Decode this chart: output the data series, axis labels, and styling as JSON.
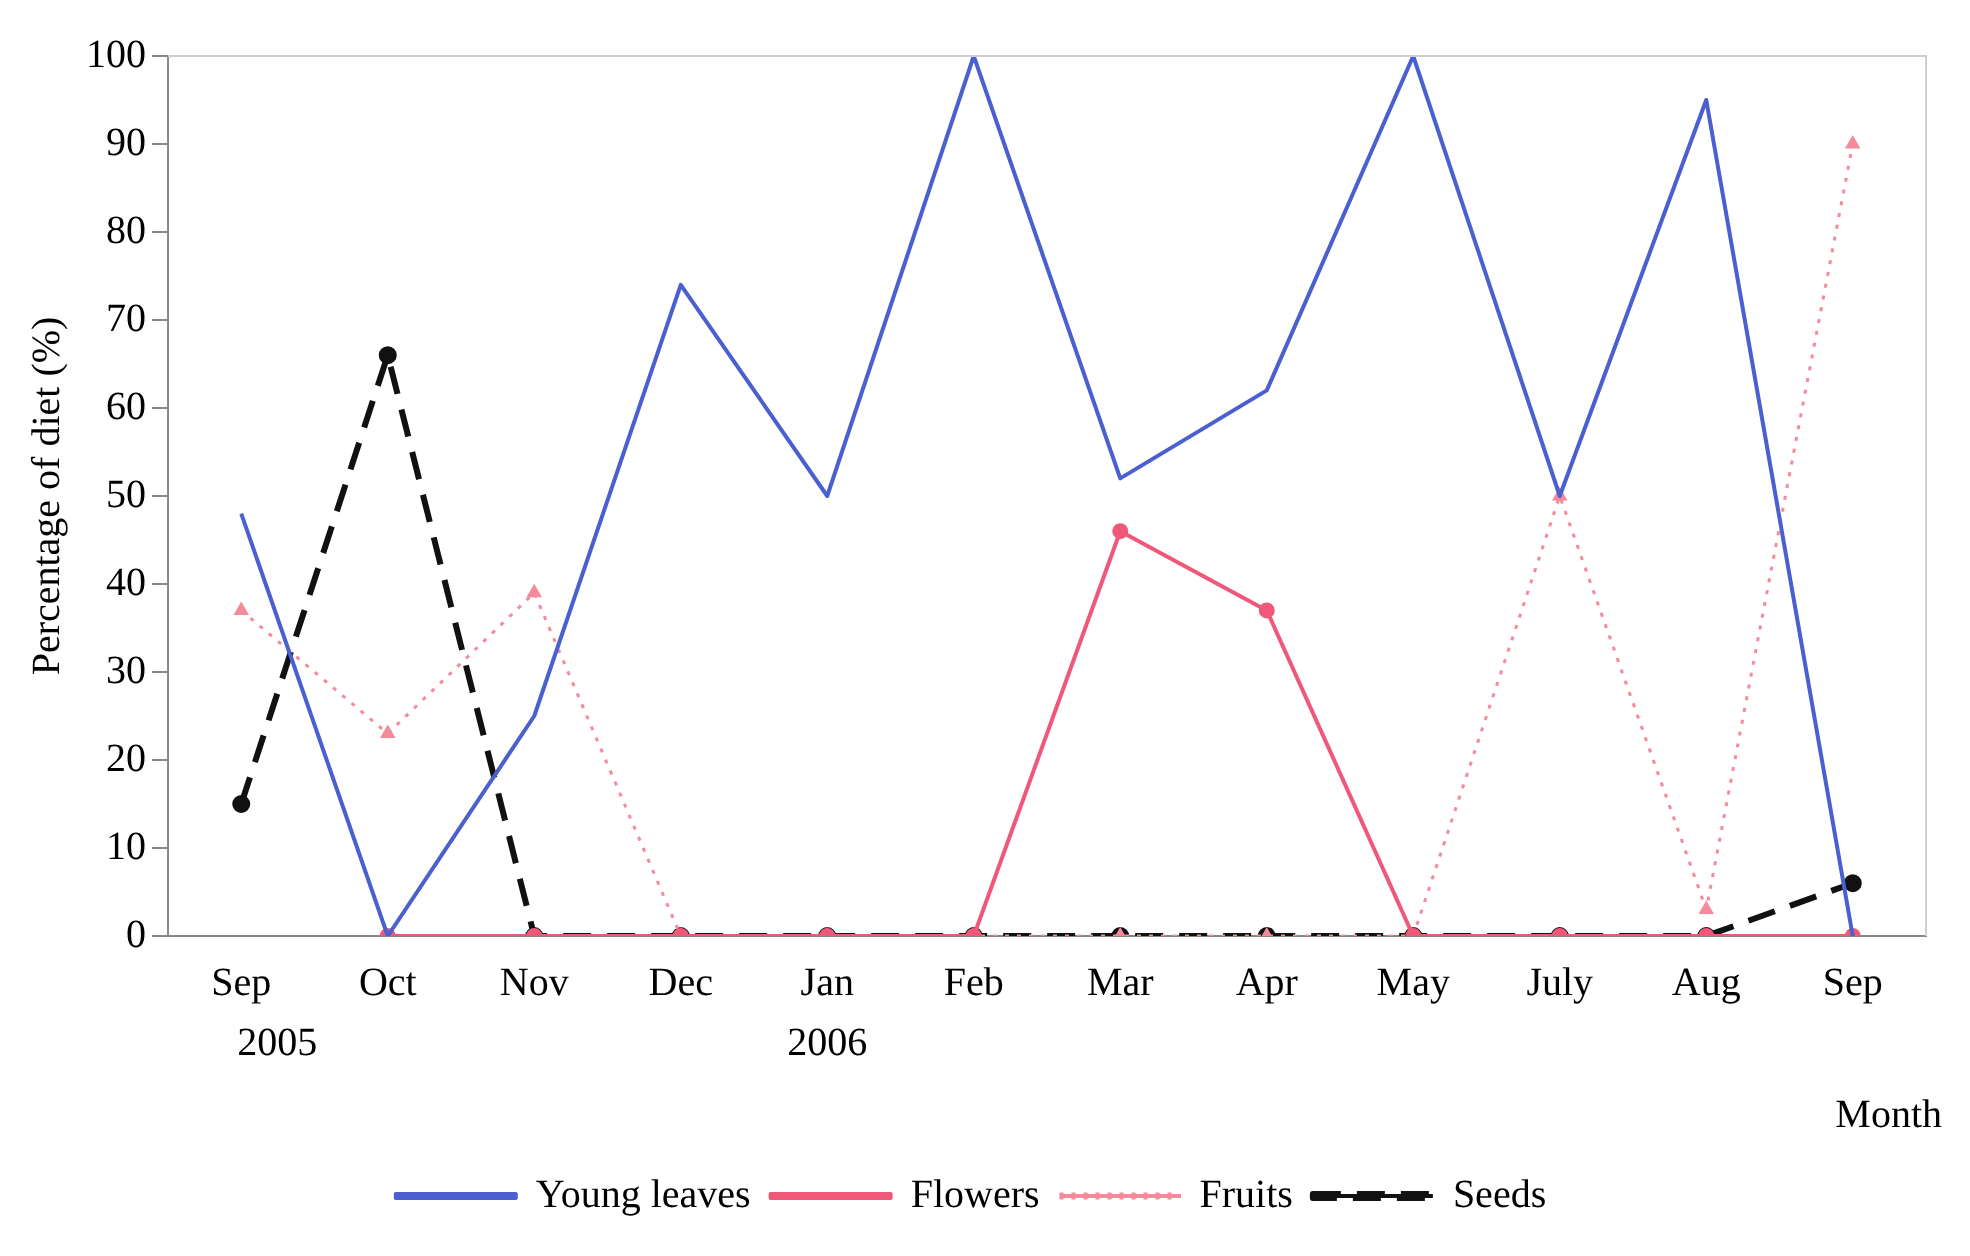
{
  "chart_data": {
    "type": "line",
    "xlabel": "Month",
    "ylabel": "Percentage of diet (%)",
    "categories": [
      "Sep",
      "Oct",
      "Nov",
      "Dec",
      "Jan",
      "Feb",
      "Mar",
      "Apr",
      "May",
      "July",
      "Aug",
      "Sep"
    ],
    "series": [
      {
        "name": "Young leaves",
        "color": "#4a5fd0",
        "marker": "none",
        "line_style": "solid",
        "values": [
          48,
          0,
          25,
          74,
          50,
          100,
          52,
          62,
          100,
          50,
          95,
          0
        ]
      },
      {
        "name": "Flowers",
        "color": "#f0587a",
        "marker": "circle",
        "line_style": "solid",
        "values": [
          null,
          0,
          0,
          0,
          0,
          0,
          46,
          37,
          0,
          0,
          0,
          0
        ]
      },
      {
        "name": "Fruits",
        "color": "#f48a9a",
        "marker": "triangle",
        "line_style": "dotted",
        "values": [
          37,
          23,
          39,
          0,
          0,
          0,
          0,
          0,
          0,
          50,
          3,
          90
        ]
      },
      {
        "name": "Seeds",
        "color": "#111111",
        "marker": "circle",
        "line_style": "dashed",
        "values": [
          15,
          66,
          0,
          0,
          0,
          0,
          0,
          0,
          0,
          0,
          0,
          6
        ]
      }
    ],
    "annotations": [
      "2005",
      "2006"
    ],
    "ylim": [
      0,
      100
    ],
    "yticks": [
      0,
      10,
      20,
      30,
      40,
      50,
      60,
      70,
      80,
      90,
      100
    ],
    "grid": false,
    "legend": "bottom"
  }
}
